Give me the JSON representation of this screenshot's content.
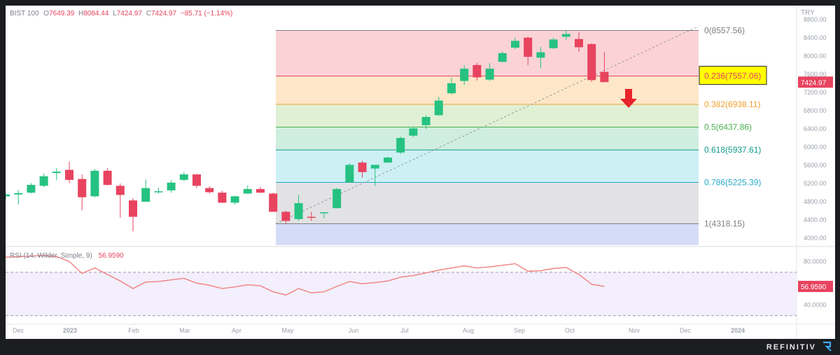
{
  "header": {
    "symbol": "BIST 100",
    "open_label": "O",
    "open": "7649.39",
    "high_label": "H",
    "high": "8084.44",
    "low_label": "L",
    "low": "7424.97",
    "close_label": "C",
    "close": "7424.97",
    "change": "−85.71 (−1.14%)"
  },
  "colors": {
    "up": "#26c281",
    "down": "#e8435f",
    "rsi_line": "#f08080",
    "arrow": "#e8232a"
  },
  "arrow_icon": "down-arrow-icon",
  "brand": {
    "name": "REFINITIV",
    "icon": "refinitiv-logo-icon"
  },
  "chart_data": [
    {
      "type": "candlestick",
      "currency": "TRY",
      "price_axis": {
        "range": [
          3850,
          8950
        ],
        "ticks": [
          "8800.00",
          "8400.00",
          "8000.00",
          "7600.00",
          "7200.00",
          "6800.00",
          "6400.00",
          "6000.00",
          "5600.00",
          "5200.00",
          "4800.00",
          "4400.00",
          "4000.00"
        ]
      },
      "last_price_label": "7424.97",
      "x_axis": {
        "labels": [
          "Dec",
          "2023",
          "Feb",
          "Mar",
          "Apr",
          "May",
          "Jun",
          "Jul",
          "Aug",
          "Sep",
          "Oct",
          "Nov",
          "Dec",
          "2024"
        ]
      },
      "candles": [
        {
          "x": "2022-11-28",
          "o": 4920,
          "h": 4990,
          "l": 4850,
          "c": 4960
        },
        {
          "x": "2022-12-05",
          "o": 4960,
          "h": 5060,
          "l": 4740,
          "c": 4990
        },
        {
          "x": "2022-12-12",
          "o": 5000,
          "h": 5210,
          "l": 4980,
          "c": 5170
        },
        {
          "x": "2022-12-19",
          "o": 5150,
          "h": 5420,
          "l": 5120,
          "c": 5360
        },
        {
          "x": "2022-12-26",
          "o": 5430,
          "h": 5540,
          "l": 5270,
          "c": 5460
        },
        {
          "x": "2023-01-02",
          "o": 5500,
          "h": 5680,
          "l": 5210,
          "c": 5280
        },
        {
          "x": "2023-01-09",
          "o": 5300,
          "h": 5400,
          "l": 4610,
          "c": 4900
        },
        {
          "x": "2023-01-16",
          "o": 4920,
          "h": 5520,
          "l": 4900,
          "c": 5480
        },
        {
          "x": "2023-01-23",
          "o": 5480,
          "h": 5540,
          "l": 5150,
          "c": 5170
        },
        {
          "x": "2023-01-30",
          "o": 5150,
          "h": 5200,
          "l": 4450,
          "c": 4950
        },
        {
          "x": "2023-02-06",
          "o": 4830,
          "h": 4880,
          "l": 4150,
          "c": 4470
        },
        {
          "x": "2023-02-13",
          "o": 4800,
          "h": 5290,
          "l": 4800,
          "c": 5100
        },
        {
          "x": "2023-02-20",
          "o": 5010,
          "h": 5110,
          "l": 4980,
          "c": 5030
        },
        {
          "x": "2023-02-27",
          "o": 5050,
          "h": 5270,
          "l": 5000,
          "c": 5220
        },
        {
          "x": "2023-03-06",
          "o": 5280,
          "h": 5450,
          "l": 5250,
          "c": 5400
        },
        {
          "x": "2023-03-13",
          "o": 5400,
          "h": 5410,
          "l": 5100,
          "c": 5150
        },
        {
          "x": "2023-03-20",
          "o": 5100,
          "h": 5140,
          "l": 4980,
          "c": 5010
        },
        {
          "x": "2023-03-27",
          "o": 5000,
          "h": 5040,
          "l": 4770,
          "c": 4780
        },
        {
          "x": "2023-04-03",
          "o": 4780,
          "h": 4930,
          "l": 4740,
          "c": 4920
        },
        {
          "x": "2023-04-10",
          "o": 4980,
          "h": 5160,
          "l": 4970,
          "c": 5080
        },
        {
          "x": "2023-04-17",
          "o": 5080,
          "h": 5130,
          "l": 4990,
          "c": 5000
        },
        {
          "x": "2023-04-24",
          "o": 4980,
          "h": 5000,
          "l": 4600,
          "c": 4580
        },
        {
          "x": "2023-05-01",
          "o": 4580,
          "h": 4600,
          "l": 4318,
          "c": 4380
        },
        {
          "x": "2023-05-08",
          "o": 4420,
          "h": 4950,
          "l": 4380,
          "c": 4770
        },
        {
          "x": "2023-05-15",
          "o": 4470,
          "h": 4580,
          "l": 4380,
          "c": 4460
        },
        {
          "x": "2023-05-22",
          "o": 4550,
          "h": 4560,
          "l": 4440,
          "c": 4570
        },
        {
          "x": "2023-05-29",
          "o": 4660,
          "h": 5100,
          "l": 4660,
          "c": 5080
        },
        {
          "x": "2023-06-05",
          "o": 5230,
          "h": 5640,
          "l": 5220,
          "c": 5610
        },
        {
          "x": "2023-06-12",
          "o": 5660,
          "h": 5700,
          "l": 5330,
          "c": 5450
        },
        {
          "x": "2023-06-19",
          "o": 5530,
          "h": 5600,
          "l": 5150,
          "c": 5610
        },
        {
          "x": "2023-06-26",
          "o": 5660,
          "h": 5790,
          "l": 5650,
          "c": 5770
        },
        {
          "x": "2023-07-03",
          "o": 5880,
          "h": 6230,
          "l": 5850,
          "c": 6200
        },
        {
          "x": "2023-07-10",
          "o": 6250,
          "h": 6450,
          "l": 6220,
          "c": 6410
        },
        {
          "x": "2023-07-17",
          "o": 6480,
          "h": 6700,
          "l": 6400,
          "c": 6660
        },
        {
          "x": "2023-07-24",
          "o": 6700,
          "h": 7100,
          "l": 6690,
          "c": 7020
        },
        {
          "x": "2023-07-31",
          "o": 7180,
          "h": 7520,
          "l": 7150,
          "c": 7400
        },
        {
          "x": "2023-08-07",
          "o": 7450,
          "h": 7800,
          "l": 7360,
          "c": 7720
        },
        {
          "x": "2023-08-14",
          "o": 7800,
          "h": 7850,
          "l": 7460,
          "c": 7530
        },
        {
          "x": "2023-08-21",
          "o": 7480,
          "h": 7840,
          "l": 7450,
          "c": 7720
        },
        {
          "x": "2023-08-28",
          "o": 7870,
          "h": 8100,
          "l": 7860,
          "c": 8060
        },
        {
          "x": "2023-09-04",
          "o": 8180,
          "h": 8400,
          "l": 8150,
          "c": 8330
        },
        {
          "x": "2023-09-11",
          "o": 8400,
          "h": 8420,
          "l": 7800,
          "c": 7980
        },
        {
          "x": "2023-09-18",
          "o": 7960,
          "h": 8200,
          "l": 7730,
          "c": 8080
        },
        {
          "x": "2023-09-25",
          "o": 8170,
          "h": 8400,
          "l": 8150,
          "c": 8360
        },
        {
          "x": "2023-10-02",
          "o": 8420,
          "h": 8557.56,
          "l": 8350,
          "c": 8480
        },
        {
          "x": "2023-10-09",
          "o": 8370,
          "h": 8520,
          "l": 8090,
          "c": 8190
        },
        {
          "x": "2023-10-16",
          "o": 8260,
          "h": 8280,
          "l": 7430,
          "c": 7470
        },
        {
          "x": "2023-10-23",
          "o": 7649.39,
          "h": 8084.44,
          "l": 7424.97,
          "c": 7424.97
        }
      ],
      "fibonacci": [
        {
          "ratio": "0",
          "price": "8557.56",
          "label": "0(8557.56)",
          "color": "#7f7f7f",
          "fill": "#fbd3d7"
        },
        {
          "ratio": "0.236",
          "price": "7557.06",
          "label": "0.236(7557.06)",
          "color": "#e8435f",
          "fill": "#fde7c8"
        },
        {
          "ratio": "0.382",
          "price": "6938.11",
          "label": "0.382(6938.11)",
          "color": "#f0a030",
          "fill": "#dff0d5"
        },
        {
          "ratio": "0.5",
          "price": "6437.86",
          "label": "0.5(6437.86)",
          "color": "#4caf50",
          "fill": "#cfeee0"
        },
        {
          "ratio": "0.618",
          "price": "5937.61",
          "label": "0.618(5937.61)",
          "color": "#0f9a8a",
          "fill": "#cdf0f4"
        },
        {
          "ratio": "0.786",
          "price": "5225.39",
          "label": "0.786(5225.39)",
          "color": "#26a8c8",
          "fill": "#e2e2e4"
        },
        {
          "ratio": "1",
          "price": "4318.15",
          "label": "1(4318.15)",
          "color": "#7f7f7f",
          "fill": "#d4dcf8"
        }
      ],
      "fib_lower_extent": 3850,
      "fib_highlight": "0.236(7557.06)"
    },
    {
      "type": "line",
      "title": "RSI (14, Wilder, Simple, 9)",
      "last_value": "56.9590",
      "y_axis": {
        "ticks": [
          "80.0000",
          "40.0000"
        ],
        "range": [
          24,
          90
        ],
        "band": [
          30,
          70
        ]
      },
      "values": [
        84,
        84.5,
        85,
        85.5,
        84.5,
        80,
        69,
        74,
        68,
        62,
        55,
        61,
        61.5,
        63,
        64.5,
        60,
        58,
        55,
        56.5,
        58.5,
        57.5,
        52,
        49,
        55,
        51,
        52,
        57,
        61.5,
        59.5,
        60.5,
        62,
        65.5,
        67,
        69.5,
        72,
        74,
        76,
        74,
        75,
        76.5,
        78,
        71,
        71.5,
        73.5,
        74.5,
        68,
        59,
        56.959
      ]
    }
  ]
}
